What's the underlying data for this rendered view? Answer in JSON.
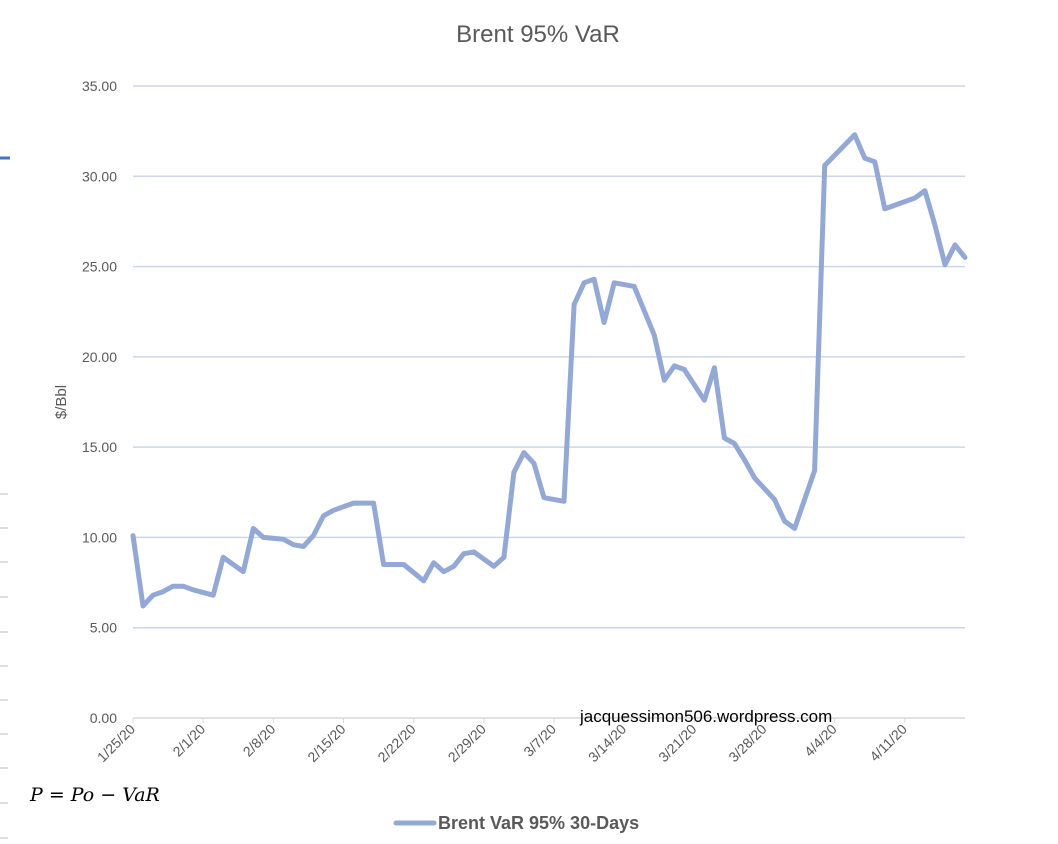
{
  "chart_data": {
    "type": "line",
    "title": "Brent 95% VaR",
    "xlabel": "",
    "ylabel": "$/Bbl",
    "ylim": [
      0,
      35
    ],
    "yticks": [
      "0.00",
      "5.00",
      "10.00",
      "15.00",
      "20.00",
      "25.00",
      "30.00",
      "35.00"
    ],
    "xtick_labels": [
      "1/25/20",
      "2/1/20",
      "2/8/20",
      "2/15/20",
      "2/22/20",
      "2/29/20",
      "3/7/20",
      "3/14/20",
      "3/21/20",
      "3/28/20",
      "4/4/20",
      "4/11/20"
    ],
    "xlim": [
      "2020-01-25",
      "2020-04-17"
    ],
    "grid": true,
    "legend_position": "bottom",
    "color": "#94A8D6",
    "series": [
      {
        "name": "Brent VaR 95% 30-Days",
        "points": [
          [
            "2020-01-25",
            10.1
          ],
          [
            "2020-01-26",
            6.2
          ],
          [
            "2020-01-27",
            6.8
          ],
          [
            "2020-01-28",
            7.0
          ],
          [
            "2020-01-29",
            7.3
          ],
          [
            "2020-01-30",
            7.3
          ],
          [
            "2020-01-31",
            7.1
          ],
          [
            "2020-02-02",
            6.8
          ],
          [
            "2020-02-03",
            8.9
          ],
          [
            "2020-02-05",
            8.1
          ],
          [
            "2020-02-06",
            10.5
          ],
          [
            "2020-02-07",
            10.0
          ],
          [
            "2020-02-09",
            9.9
          ],
          [
            "2020-02-10",
            9.6
          ],
          [
            "2020-02-11",
            9.5
          ],
          [
            "2020-02-12",
            10.1
          ],
          [
            "2020-02-13",
            11.2
          ],
          [
            "2020-02-14",
            11.5
          ],
          [
            "2020-02-16",
            11.9
          ],
          [
            "2020-02-18",
            11.9
          ],
          [
            "2020-02-19",
            8.5
          ],
          [
            "2020-02-21",
            8.5
          ],
          [
            "2020-02-23",
            7.6
          ],
          [
            "2020-02-24",
            8.6
          ],
          [
            "2020-02-25",
            8.1
          ],
          [
            "2020-02-26",
            8.4
          ],
          [
            "2020-02-27",
            9.1
          ],
          [
            "2020-02-28",
            9.2
          ],
          [
            "2020-03-01",
            8.4
          ],
          [
            "2020-03-02",
            8.9
          ],
          [
            "2020-03-03",
            13.6
          ],
          [
            "2020-03-04",
            14.7
          ],
          [
            "2020-03-05",
            14.1
          ],
          [
            "2020-03-06",
            12.2
          ],
          [
            "2020-03-08",
            12.0
          ],
          [
            "2020-03-09",
            22.9
          ],
          [
            "2020-03-10",
            24.1
          ],
          [
            "2020-03-11",
            24.3
          ],
          [
            "2020-03-12",
            21.9
          ],
          [
            "2020-03-13",
            24.1
          ],
          [
            "2020-03-15",
            23.9
          ],
          [
            "2020-03-17",
            21.2
          ],
          [
            "2020-03-18",
            18.7
          ],
          [
            "2020-03-19",
            19.5
          ],
          [
            "2020-03-20",
            19.3
          ],
          [
            "2020-03-22",
            17.6
          ],
          [
            "2020-03-23",
            19.4
          ],
          [
            "2020-03-24",
            15.5
          ],
          [
            "2020-03-25",
            15.2
          ],
          [
            "2020-03-26",
            14.3
          ],
          [
            "2020-03-27",
            13.3
          ],
          [
            "2020-03-29",
            12.1
          ],
          [
            "2020-03-30",
            10.9
          ],
          [
            "2020-03-31",
            10.5
          ],
          [
            "2020-04-02",
            13.7
          ],
          [
            "2020-04-03",
            30.6
          ],
          [
            "2020-04-06",
            32.3
          ],
          [
            "2020-04-07",
            31.0
          ],
          [
            "2020-04-08",
            30.8
          ],
          [
            "2020-04-09",
            28.2
          ],
          [
            "2020-04-12",
            28.8
          ],
          [
            "2020-04-13",
            29.2
          ],
          [
            "2020-04-14",
            27.3
          ],
          [
            "2020-04-15",
            25.1
          ],
          [
            "2020-04-16",
            26.2
          ],
          [
            "2020-04-17",
            25.5
          ]
        ]
      }
    ],
    "annotations": [
      "jacquessimon506.wordpress.com"
    ]
  },
  "formula": "P = Po − VaR"
}
